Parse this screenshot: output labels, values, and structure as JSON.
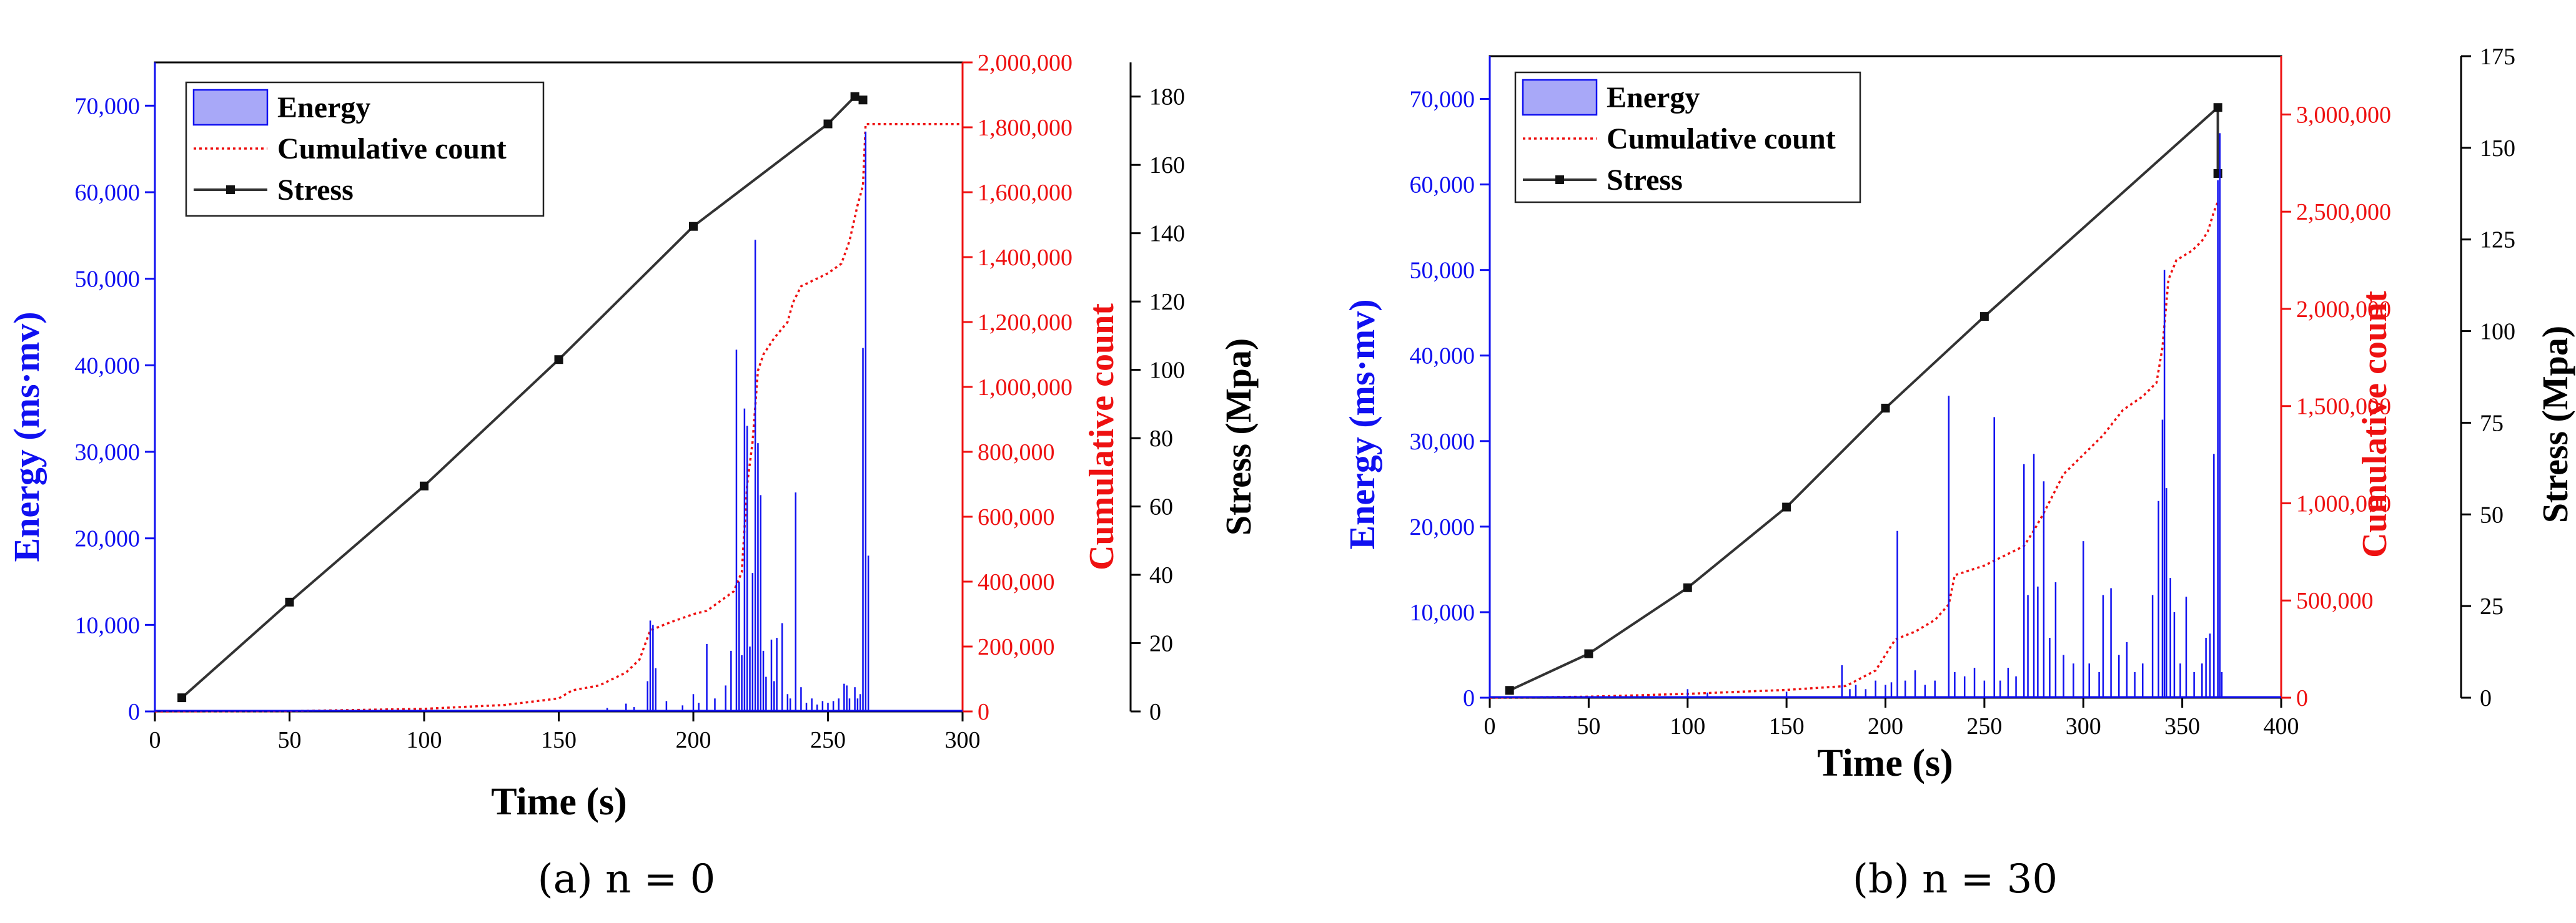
{
  "colors": {
    "energy": "#1010f0",
    "energy_fill": "#a8a8f8",
    "cumulative": "#ee1111",
    "stress": "#333333",
    "axis": "#000000"
  },
  "chart_data": [
    {
      "type": "combo",
      "id": "a",
      "caption_label": "(a)",
      "caption_text": " n = 0",
      "xlabel": "Time (s)",
      "ylabel_left": "Energy (ms·mv)",
      "ylabel_right1": "Cumulative count",
      "ylabel_right2": "Stress (Mpa)",
      "xlim": [
        0,
        300
      ],
      "xticks": [
        0,
        50,
        100,
        150,
        200,
        250,
        300
      ],
      "xtick_labels": [
        "0",
        "50",
        "100",
        "150",
        "200",
        "250",
        "300"
      ],
      "energy_axis": {
        "ylim": [
          0,
          75000
        ],
        "ticks": [
          0,
          10000,
          20000,
          30000,
          40000,
          50000,
          60000,
          70000
        ],
        "tick_labels": [
          "0",
          "10,000",
          "20,000",
          "30,000",
          "40,000",
          "50,000",
          "60,000",
          "70,000"
        ]
      },
      "cumulative_axis": {
        "ylim": [
          0,
          2000000
        ],
        "ticks": [
          0,
          200000,
          400000,
          600000,
          800000,
          1000000,
          1200000,
          1400000,
          1600000,
          1800000,
          2000000
        ],
        "tick_labels": [
          "0",
          "200,000",
          "400,000",
          "600,000",
          "800,000",
          "1,000,000",
          "1,200,000",
          "1,400,000",
          "1,600,000",
          "1,800,000",
          "2,000,000"
        ]
      },
      "stress_axis": {
        "ylim": [
          0,
          190
        ],
        "ticks": [
          0,
          20,
          40,
          60,
          80,
          100,
          120,
          140,
          160,
          180
        ],
        "tick_labels": [
          "0",
          "20",
          "40",
          "60",
          "80",
          "100",
          "120",
          "140",
          "160",
          "180"
        ]
      },
      "legend": {
        "position": "top-left",
        "entries": [
          {
            "key": "energy",
            "label": "Energy",
            "style": "box"
          },
          {
            "key": "cumulative",
            "label": "Cumulative count",
            "style": "dotted"
          },
          {
            "key": "stress",
            "label": "Stress",
            "style": "line-marker"
          }
        ]
      },
      "series": [
        {
          "name": "Stress",
          "axis": "stress",
          "style": "line-marker",
          "points": [
            [
              10,
              4
            ],
            [
              50,
              32
            ],
            [
              100,
              66
            ],
            [
              150,
              103
            ],
            [
              200,
              142
            ],
            [
              250,
              172
            ],
            [
              260,
              180
            ],
            [
              263,
              179
            ]
          ]
        },
        {
          "name": "Cumulative count",
          "axis": "cumulative",
          "style": "dotted",
          "points": [
            [
              0,
              0
            ],
            [
              50,
              1000
            ],
            [
              100,
              8000
            ],
            [
              130,
              20000
            ],
            [
              150,
              40000
            ],
            [
              155,
              65000
            ],
            [
              165,
              80000
            ],
            [
              175,
              120000
            ],
            [
              180,
              160000
            ],
            [
              184,
              250000
            ],
            [
              190,
              270000
            ],
            [
              200,
              300000
            ],
            [
              205,
              310000
            ],
            [
              210,
              340000
            ],
            [
              215,
              370000
            ],
            [
              218,
              430000
            ],
            [
              220,
              700000
            ],
            [
              222,
              830000
            ],
            [
              224,
              1050000
            ],
            [
              226,
              1100000
            ],
            [
              230,
              1150000
            ],
            [
              235,
              1200000
            ],
            [
              237,
              1260000
            ],
            [
              240,
              1310000
            ],
            [
              245,
              1330000
            ],
            [
              250,
              1350000
            ],
            [
              255,
              1380000
            ],
            [
              258,
              1450000
            ],
            [
              261,
              1560000
            ],
            [
              263,
              1620000
            ],
            [
              264,
              1810000
            ],
            [
              268,
              1810000
            ],
            [
              300,
              1810000
            ]
          ]
        },
        {
          "name": "Energy",
          "axis": "energy",
          "style": "impulses",
          "points": [
            [
              168,
              400
            ],
            [
              175,
              900
            ],
            [
              178,
              500
            ],
            [
              183,
              3500
            ],
            [
              184,
              10500
            ],
            [
              185,
              10000
            ],
            [
              186,
              5000
            ],
            [
              190,
              1200
            ],
            [
              196,
              700
            ],
            [
              200,
              2000
            ],
            [
              202,
              1000
            ],
            [
              205,
              7800
            ],
            [
              208,
              1500
            ],
            [
              212,
              3000
            ],
            [
              214,
              7000
            ],
            [
              216,
              41800
            ],
            [
              217,
              15000
            ],
            [
              218,
              6500
            ],
            [
              219,
              35000
            ],
            [
              220,
              33000
            ],
            [
              221,
              7500
            ],
            [
              222,
              16000
            ],
            [
              223,
              54500
            ],
            [
              224,
              31000
            ],
            [
              225,
              25000
            ],
            [
              226,
              7000
            ],
            [
              227,
              4000
            ],
            [
              229,
              8300
            ],
            [
              230,
              3500
            ],
            [
              231,
              8500
            ],
            [
              233,
              10200
            ],
            [
              235,
              2000
            ],
            [
              236,
              1500
            ],
            [
              238,
              25300
            ],
            [
              240,
              2800
            ],
            [
              242,
              1000
            ],
            [
              244,
              1500
            ],
            [
              246,
              800
            ],
            [
              248,
              1200
            ],
            [
              250,
              1000
            ],
            [
              252,
              1200
            ],
            [
              254,
              1500
            ],
            [
              256,
              3200
            ],
            [
              257,
              3000
            ],
            [
              258,
              1500
            ],
            [
              260,
              2800
            ],
            [
              261,
              1500
            ],
            [
              262,
              2000
            ],
            [
              263,
              42000
            ],
            [
              264,
              67000
            ],
            [
              265,
              18000
            ]
          ]
        }
      ]
    },
    {
      "type": "combo",
      "id": "b",
      "caption_label": "(b)",
      "caption_text": " n = 30",
      "xlabel": "Time (s)",
      "ylabel_left": "Energy (ms·mv)",
      "ylabel_right1": "Cumulative count",
      "ylabel_right2": "Stress (Mpa)",
      "xlim": [
        0,
        400
      ],
      "xticks": [
        0,
        50,
        100,
        150,
        200,
        250,
        300,
        350,
        400
      ],
      "xtick_labels": [
        "0",
        "50",
        "100",
        "150",
        "200",
        "250",
        "300",
        "350",
        "400"
      ],
      "energy_axis": {
        "ylim": [
          0,
          75000
        ],
        "ticks": [
          0,
          10000,
          20000,
          30000,
          40000,
          50000,
          60000,
          70000
        ],
        "tick_labels": [
          "0",
          "10,000",
          "20,000",
          "30,000",
          "40,000",
          "50,000",
          "60,000",
          "70,000"
        ]
      },
      "cumulative_axis": {
        "ylim": [
          0,
          3300000
        ],
        "ticks": [
          0,
          500000,
          1000000,
          1500000,
          2000000,
          2500000,
          3000000
        ],
        "tick_labels": [
          "0",
          "500,000",
          "1,000,000",
          "1,500,000",
          "2,000,000",
          "2,500,000",
          "3,000,000"
        ]
      },
      "stress_axis": {
        "ylim": [
          0,
          175
        ],
        "ticks": [
          0,
          25,
          50,
          75,
          100,
          125,
          150,
          175
        ],
        "tick_labels": [
          "0",
          "25",
          "50",
          "75",
          "100",
          "125",
          "150",
          "175"
        ]
      },
      "legend": {
        "position": "top-left",
        "entries": [
          {
            "key": "energy",
            "label": "Energy",
            "style": "box"
          },
          {
            "key": "cumulative",
            "label": "Cumulative count",
            "style": "dotted"
          },
          {
            "key": "stress",
            "label": "Stress",
            "style": "line-marker"
          }
        ]
      },
      "series": [
        {
          "name": "Stress",
          "axis": "stress",
          "style": "line-marker",
          "points": [
            [
              10,
              2
            ],
            [
              50,
              12
            ],
            [
              100,
              30
            ],
            [
              150,
              52
            ],
            [
              200,
              79
            ],
            [
              250,
              104
            ],
            [
              368,
              161
            ],
            [
              368,
              143
            ]
          ]
        },
        {
          "name": "Cumulative count",
          "axis": "cumulative",
          "style": "dotted",
          "points": [
            [
              0,
              0
            ],
            [
              50,
              5000
            ],
            [
              100,
              20000
            ],
            [
              150,
              40000
            ],
            [
              180,
              60000
            ],
            [
              195,
              140000
            ],
            [
              205,
              300000
            ],
            [
              215,
              340000
            ],
            [
              225,
              400000
            ],
            [
              232,
              480000
            ],
            [
              235,
              630000
            ],
            [
              250,
              680000
            ],
            [
              260,
              730000
            ],
            [
              270,
              780000
            ],
            [
              275,
              860000
            ],
            [
              280,
              950000
            ],
            [
              290,
              1150000
            ],
            [
              300,
              1250000
            ],
            [
              310,
              1350000
            ],
            [
              320,
              1480000
            ],
            [
              330,
              1550000
            ],
            [
              337,
              1620000
            ],
            [
              340,
              1800000
            ],
            [
              343,
              2150000
            ],
            [
              347,
              2250000
            ],
            [
              355,
              2300000
            ],
            [
              360,
              2350000
            ],
            [
              363,
              2400000
            ],
            [
              366,
              2500000
            ],
            [
              368,
              2550000
            ]
          ]
        },
        {
          "name": "Energy",
          "axis": "energy",
          "style": "impulses",
          "points": [
            [
              100,
              1000
            ],
            [
              110,
              600
            ],
            [
              150,
              700
            ],
            [
              178,
              3800
            ],
            [
              182,
              1000
            ],
            [
              185,
              1500
            ],
            [
              190,
              1000
            ],
            [
              195,
              2000
            ],
            [
              200,
              1500
            ],
            [
              203,
              1800
            ],
            [
              206,
              19500
            ],
            [
              210,
              2000
            ],
            [
              215,
              3200
            ],
            [
              220,
              1500
            ],
            [
              225,
              2000
            ],
            [
              232,
              35300
            ],
            [
              235,
              3000
            ],
            [
              240,
              2500
            ],
            [
              245,
              3500
            ],
            [
              250,
              2000
            ],
            [
              255,
              32800
            ],
            [
              258,
              2000
            ],
            [
              262,
              3500
            ],
            [
              266,
              2500
            ],
            [
              270,
              27300
            ],
            [
              272,
              12000
            ],
            [
              275,
              28500
            ],
            [
              277,
              13000
            ],
            [
              280,
              25300
            ],
            [
              283,
              7000
            ],
            [
              286,
              13500
            ],
            [
              290,
              5000
            ],
            [
              295,
              4000
            ],
            [
              300,
              18300
            ],
            [
              303,
              4000
            ],
            [
              308,
              3000
            ],
            [
              310,
              12000
            ],
            [
              314,
              12800
            ],
            [
              318,
              5000
            ],
            [
              322,
              6500
            ],
            [
              326,
              3000
            ],
            [
              330,
              4000
            ],
            [
              335,
              12000
            ],
            [
              338,
              23000
            ],
            [
              340,
              32500
            ],
            [
              341,
              50000
            ],
            [
              342,
              24500
            ],
            [
              344,
              14000
            ],
            [
              346,
              10000
            ],
            [
              349,
              4000
            ],
            [
              352,
              11800
            ],
            [
              356,
              3000
            ],
            [
              360,
              4000
            ],
            [
              362,
              7000
            ],
            [
              364,
              7500
            ],
            [
              366,
              28500
            ],
            [
              368,
              60500
            ],
            [
              369,
              66000
            ],
            [
              370,
              3000
            ]
          ]
        }
      ]
    }
  ]
}
